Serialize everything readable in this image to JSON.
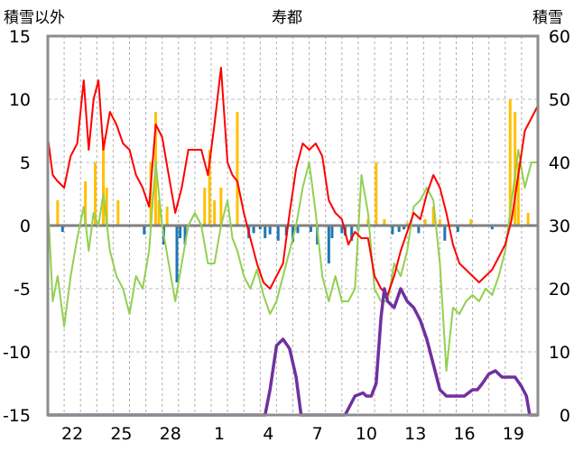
{
  "chart_data": {
    "type": "line",
    "title": "寿都",
    "y_left_label": "積雪以外",
    "y_right_label": "積雪",
    "y_left_range": [
      -15,
      15
    ],
    "y_right_range": [
      0,
      60
    ],
    "y_left_ticks": [
      "15",
      "10",
      "5",
      "0",
      "-5",
      "-10",
      "-15"
    ],
    "y_right_ticks": [
      "60",
      "50",
      "40",
      "30",
      "20",
      "10",
      "0"
    ],
    "x_range": [
      0,
      30
    ],
    "x_tick_labels": [
      {
        "x": 1.5,
        "label": "22"
      },
      {
        "x": 4.5,
        "label": "25"
      },
      {
        "x": 7.5,
        "label": "28"
      },
      {
        "x": 10.5,
        "label": "1"
      },
      {
        "x": 13.5,
        "label": "4"
      },
      {
        "x": 16.5,
        "label": "7"
      },
      {
        "x": 19.5,
        "label": "10"
      },
      {
        "x": 22.5,
        "label": "13"
      },
      {
        "x": 25.5,
        "label": "16"
      },
      {
        "x": 28.5,
        "label": "19"
      }
    ],
    "grid": true,
    "colors": {
      "max_temp": "#ff0000",
      "min_temp": "#92d050",
      "precip_positive": "#ffc000",
      "precip_negative": "#1f77b4",
      "snow_depth": "#7030a0",
      "zero_line": "#808080",
      "grid": "#b0b0b0"
    },
    "series": [
      {
        "axis": "left",
        "color": "#ff0000",
        "x": [
          0,
          0.3,
          0.6,
          1.0,
          1.4,
          1.8,
          2.2,
          2.5,
          2.8,
          3.1,
          3.4,
          3.8,
          4.2,
          4.6,
          5.0,
          5.4,
          5.8,
          6.2,
          6.6,
          7.0,
          7.4,
          7.8,
          8.2,
          8.6,
          9.0,
          9.4,
          9.8,
          10.2,
          10.6,
          11.0,
          11.3,
          11.6,
          12.0,
          12.4,
          12.8,
          13.2,
          13.6,
          14.0,
          14.4,
          14.8,
          15.2,
          15.6,
          16.0,
          16.4,
          16.8,
          17.2,
          17.6,
          18.0,
          18.4,
          18.8,
          19.2,
          19.6,
          20.0,
          20.4,
          20.8,
          21.2,
          21.6,
          22.0,
          22.4,
          22.8,
          23.2,
          23.6,
          24.0,
          24.4,
          24.8,
          25.2,
          25.6,
          26.0,
          26.4,
          26.8,
          27.2,
          27.6,
          28.0,
          28.4,
          28.8,
          29.2,
          29.6,
          30.0
        ],
        "y": [
          7,
          4,
          3.5,
          3,
          5.5,
          6.5,
          11.5,
          6,
          10,
          11.5,
          6,
          9,
          8,
          6.5,
          6,
          4,
          3,
          1.5,
          8,
          7,
          4,
          1,
          3,
          6,
          6,
          6,
          4,
          8,
          12.5,
          5,
          4,
          3.5,
          1,
          -1,
          -3,
          -4.5,
          -5,
          -4,
          -3,
          1,
          4.5,
          6.5,
          6,
          6.5,
          5.5,
          2,
          1,
          0.5,
          -1.5,
          -0.5,
          -1,
          -1,
          -4,
          -5,
          -5.5,
          -4,
          -2,
          -0.5,
          1,
          0.5,
          2.5,
          4,
          3,
          1,
          -1.5,
          -3,
          -3.5,
          -4,
          -4.5,
          -4,
          -3.5,
          -2.5,
          -1.5,
          0.5,
          4,
          7.5,
          8.5,
          9.5
        ]
      },
      {
        "axis": "left",
        "color": "#92d050",
        "x": [
          0,
          0.3,
          0.6,
          1.0,
          1.4,
          1.8,
          2.2,
          2.5,
          2.8,
          3.1,
          3.4,
          3.8,
          4.2,
          4.6,
          5.0,
          5.4,
          5.8,
          6.2,
          6.6,
          7.0,
          7.4,
          7.8,
          8.2,
          8.6,
          9.0,
          9.4,
          9.8,
          10.2,
          10.6,
          11.0,
          11.3,
          11.6,
          12.0,
          12.4,
          12.8,
          13.2,
          13.6,
          14.0,
          14.4,
          14.8,
          15.2,
          15.6,
          16.0,
          16.4,
          16.8,
          17.2,
          17.6,
          18.0,
          18.4,
          18.8,
          19.2,
          19.6,
          20.0,
          20.4,
          20.8,
          21.2,
          21.6,
          22.0,
          22.4,
          22.8,
          23.2,
          23.6,
          24.0,
          24.4,
          24.8,
          25.2,
          25.6,
          26.0,
          26.4,
          26.8,
          27.2,
          27.6,
          28.0,
          28.4,
          28.8,
          29.2,
          29.6,
          30.0
        ],
        "y": [
          2,
          -6,
          -4,
          -8,
          -4,
          -1,
          1.5,
          -2,
          1,
          0,
          2.5,
          -2,
          -4,
          -5,
          -7,
          -4,
          -5,
          -2,
          5,
          0,
          -3,
          -6,
          -3,
          0,
          1,
          0,
          -3,
          -3,
          0,
          2,
          -1,
          -2,
          -4,
          -5,
          -3.5,
          -5.5,
          -7,
          -6,
          -4,
          -2,
          0,
          3,
          5,
          1,
          -4,
          -6,
          -4,
          -6,
          -6,
          -5,
          4,
          1,
          -5,
          -6,
          -6,
          -3,
          -4,
          -2,
          1.5,
          2,
          3,
          2,
          -3,
          -11.5,
          -6.5,
          -7,
          -6,
          -5.5,
          -6,
          -5,
          -5.5,
          -4,
          -2,
          2,
          6,
          3,
          5,
          5
        ]
      },
      {
        "axis": "right",
        "color": "#7030a0",
        "x": [
          0,
          11.0,
          11.8,
          12.0,
          12.5,
          13.0,
          13.3,
          13.6,
          14.0,
          14.4,
          14.8,
          15.2,
          15.5,
          15.7,
          16.0,
          16.2,
          16.5,
          17.0,
          17.6,
          18.2,
          18.8,
          19.3,
          19.5,
          19.8,
          20.1,
          20.4,
          20.6,
          20.8,
          21.2,
          21.6,
          22.0,
          22.4,
          22.8,
          23.2,
          23.6,
          24.0,
          24.4,
          24.8,
          25.0,
          25.5,
          26.0,
          26.3,
          26.6,
          27.0,
          27.4,
          27.8,
          28.2,
          28.6,
          29.0,
          29.3,
          29.5,
          30.0
        ],
        "y": [
          0,
          0,
          0,
          0,
          0,
          0,
          0,
          4,
          11,
          12,
          10.5,
          6,
          0,
          0,
          0,
          0,
          0,
          0,
          0,
          0,
          3,
          3.5,
          3,
          3,
          5,
          15.5,
          20,
          18,
          17,
          20,
          18,
          17,
          15,
          12,
          8,
          4,
          3,
          3,
          3,
          3,
          4,
          4,
          5,
          6.5,
          7,
          6,
          6,
          6,
          4.5,
          3,
          0,
          0
        ]
      }
    ],
    "bars": {
      "axis": "left",
      "x": [
        0.6,
        0.9,
        2.3,
        2.9,
        3.4,
        3.6,
        4.3,
        5.9,
        6.3,
        6.6,
        6.8,
        7.1,
        7.3,
        7.9,
        8.1,
        8.4,
        9.6,
        9.9,
        10.2,
        10.6,
        11.6,
        12.3,
        12.6,
        13.0,
        13.3,
        13.6,
        14.1,
        14.6,
        15.0,
        15.3,
        16.1,
        16.5,
        17.2,
        17.4,
        18.0,
        18.2,
        18.6,
        19.0,
        19.6,
        20.1,
        20.6,
        21.1,
        21.5,
        21.8,
        22.0,
        22.7,
        23.1,
        23.6,
        24.0,
        24.3,
        25.1,
        25.9,
        27.2,
        28.3,
        28.6,
        28.8,
        29.4
      ],
      "values": [
        2,
        -0.5,
        3.5,
        5,
        7,
        3,
        2,
        -0.7,
        5,
        9,
        2,
        -1.5,
        1.5,
        -4.5,
        -1,
        -1.5,
        3,
        6,
        2,
        3,
        9,
        -1,
        -0.6,
        -0.3,
        -1,
        -0.7,
        -1.2,
        -0.8,
        -1.3,
        -0.6,
        -0.5,
        -1.5,
        -3,
        -1,
        -0.6,
        -0.8,
        -1.2,
        -0.4,
        0.5,
        5,
        0.5,
        -0.7,
        -0.5,
        -0.3,
        0.2,
        -0.6,
        0.5,
        1.5,
        0.5,
        -1.2,
        -0.5,
        0.5,
        -0.3,
        10,
        9,
        5,
        1
      ]
    }
  }
}
